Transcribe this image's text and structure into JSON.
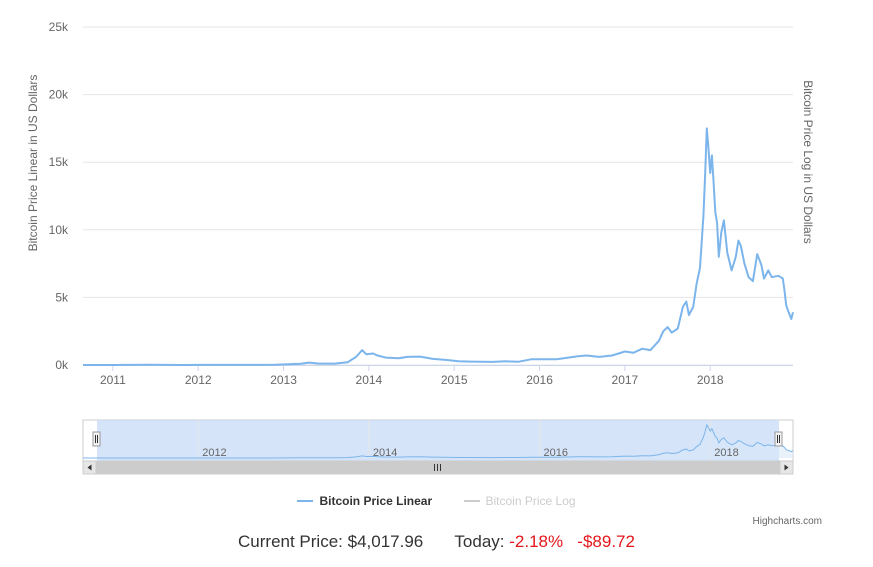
{
  "chart_data": {
    "type": "line",
    "title": "",
    "ylabel": "Bitcoin Price Linear in US Dollars",
    "ylabel_right": "Bitcoin Price Log in US Dollars",
    "y_ticks": [
      "0k",
      "5k",
      "10k",
      "15k",
      "20k",
      "25k"
    ],
    "ylim": [
      0,
      25000
    ],
    "x_ticks": [
      "2011",
      "2012",
      "2013",
      "2014",
      "2015",
      "2016",
      "2017",
      "2018"
    ],
    "xlim": [
      2010.65,
      2018.97
    ],
    "grid": true,
    "legend_position": "bottom-center",
    "series": [
      {
        "name": "Bitcoin Price Linear",
        "color": "#7cb5ec",
        "visible": true,
        "points": [
          [
            2010.65,
            0.06
          ],
          [
            2011.0,
            0.3
          ],
          [
            2011.45,
            15
          ],
          [
            2011.8,
            3
          ],
          [
            2012.0,
            5
          ],
          [
            2012.5,
            7
          ],
          [
            2012.9,
            13
          ],
          [
            2013.2,
            90
          ],
          [
            2013.3,
            180
          ],
          [
            2013.4,
            110
          ],
          [
            2013.6,
            100
          ],
          [
            2013.75,
            200
          ],
          [
            2013.85,
            600
          ],
          [
            2013.92,
            1100
          ],
          [
            2013.97,
            800
          ],
          [
            2014.05,
            850
          ],
          [
            2014.1,
            700
          ],
          [
            2014.2,
            550
          ],
          [
            2014.35,
            500
          ],
          [
            2014.45,
            600
          ],
          [
            2014.6,
            620
          ],
          [
            2014.75,
            450
          ],
          [
            2014.9,
            380
          ],
          [
            2015.05,
            280
          ],
          [
            2015.2,
            250
          ],
          [
            2015.45,
            230
          ],
          [
            2015.6,
            270
          ],
          [
            2015.75,
            240
          ],
          [
            2015.9,
            420
          ],
          [
            2016.0,
            430
          ],
          [
            2016.2,
            420
          ],
          [
            2016.45,
            650
          ],
          [
            2016.55,
            700
          ],
          [
            2016.7,
            600
          ],
          [
            2016.85,
            700
          ],
          [
            2017.0,
            1000
          ],
          [
            2017.1,
            900
          ],
          [
            2017.2,
            1200
          ],
          [
            2017.3,
            1100
          ],
          [
            2017.4,
            1800
          ],
          [
            2017.45,
            2500
          ],
          [
            2017.5,
            2800
          ],
          [
            2017.55,
            2400
          ],
          [
            2017.62,
            2700
          ],
          [
            2017.68,
            4300
          ],
          [
            2017.72,
            4700
          ],
          [
            2017.75,
            3700
          ],
          [
            2017.8,
            4300
          ],
          [
            2017.84,
            6000
          ],
          [
            2017.88,
            7200
          ],
          [
            2017.92,
            11000
          ],
          [
            2017.94,
            14000
          ],
          [
            2017.96,
            17500
          ],
          [
            2017.98,
            16000
          ],
          [
            2018.0,
            14200
          ],
          [
            2018.02,
            15500
          ],
          [
            2018.04,
            13500
          ],
          [
            2018.06,
            11300
          ],
          [
            2018.08,
            10500
          ],
          [
            2018.1,
            8000
          ],
          [
            2018.13,
            9800
          ],
          [
            2018.16,
            10700
          ],
          [
            2018.2,
            8300
          ],
          [
            2018.25,
            7000
          ],
          [
            2018.3,
            8000
          ],
          [
            2018.33,
            9200
          ],
          [
            2018.36,
            8800
          ],
          [
            2018.4,
            7500
          ],
          [
            2018.45,
            6500
          ],
          [
            2018.5,
            6200
          ],
          [
            2018.55,
            8200
          ],
          [
            2018.6,
            7400
          ],
          [
            2018.63,
            6400
          ],
          [
            2018.68,
            7000
          ],
          [
            2018.72,
            6500
          ],
          [
            2018.8,
            6600
          ],
          [
            2018.85,
            6400
          ],
          [
            2018.87,
            5500
          ],
          [
            2018.89,
            4400
          ],
          [
            2018.92,
            3900
          ],
          [
            2018.95,
            3400
          ],
          [
            2018.97,
            3900
          ]
        ]
      },
      {
        "name": "Bitcoin Price Log",
        "color": "#cccccc",
        "visible": false,
        "points": []
      }
    ]
  },
  "navigator": {
    "labels": [
      "2012",
      "2014",
      "2016",
      "2018"
    ]
  },
  "credits": "Highcharts.com",
  "footer": {
    "current_label": "Current Price:",
    "current_value": "$4,017.96",
    "today_label": "Today:",
    "today_pct": "-2.18%",
    "today_change": "-$89.72"
  }
}
